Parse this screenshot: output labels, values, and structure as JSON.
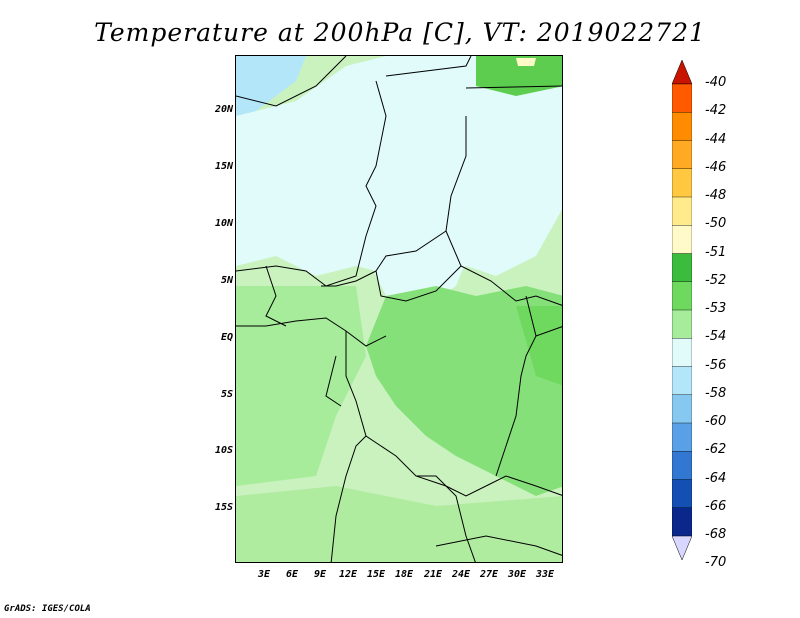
{
  "title": "Temperature at 200hPa [C], VT: 2019022721",
  "footer": "GrADS: IGES/COLA",
  "map": {
    "lat_labels": [
      "20N",
      "15N",
      "10N",
      "5N",
      "EQ",
      "5S",
      "10S",
      "15S"
    ],
    "lon_labels": [
      "3E",
      "6E",
      "9E",
      "12E",
      "15E",
      "18E",
      "21E",
      "24E",
      "27E",
      "30E",
      "33E"
    ]
  },
  "colorbar": {
    "labels": [
      "-40",
      "-42",
      "-44",
      "-46",
      "-48",
      "-50",
      "-51",
      "-52",
      "-53",
      "-54",
      "-56",
      "-58",
      "-60",
      "-62",
      "-64",
      "-66",
      "-68",
      "-70"
    ],
    "colors": [
      "#e51a00",
      "#ff5a00",
      "#ff8c00",
      "#ffaa22",
      "#ffc840",
      "#ffeb8c",
      "#fffac8",
      "#3cbc3c",
      "#6fd95f",
      "#a6ec9a",
      "#e0fbfa",
      "#b4e6fa",
      "#87c8f0",
      "#5aa0e6",
      "#3278d2",
      "#1450b4",
      "#0a288c",
      "#0a0a64"
    ],
    "top_arrow_color": "#c81400",
    "bottom_arrow_color": "#d7d7ff"
  }
}
